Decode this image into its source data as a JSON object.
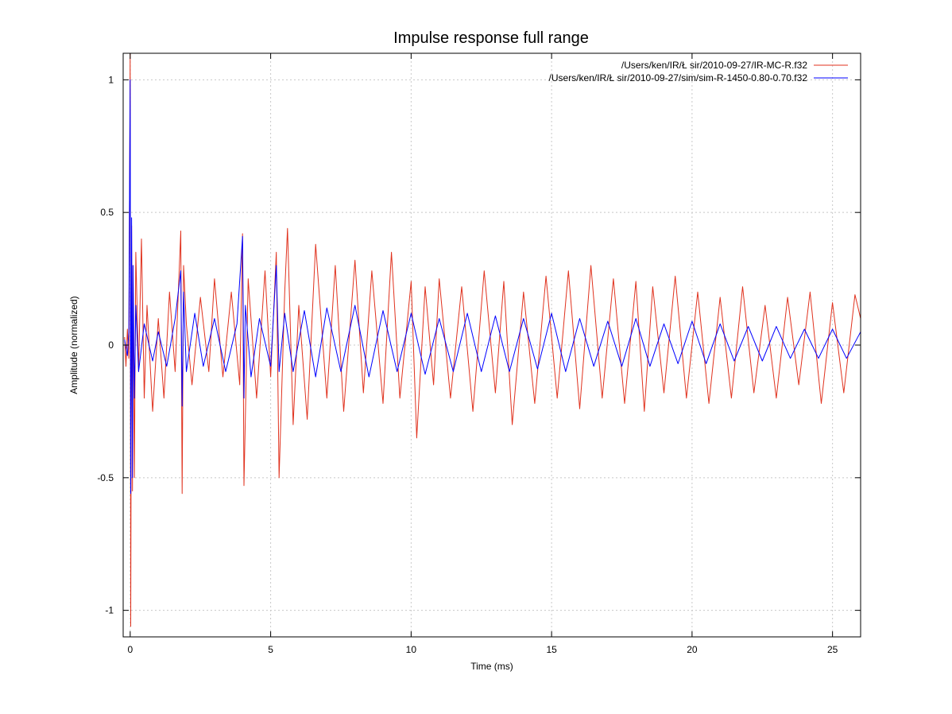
{
  "chart_data": {
    "type": "line",
    "title": "Impulse response full range",
    "xlabel": "Time (ms)",
    "ylabel": "Amplitude (normalized)",
    "xlim": [
      -0.25,
      26
    ],
    "ylim": [
      -1.1,
      1.1
    ],
    "xticks": [
      0,
      5,
      10,
      15,
      20,
      25
    ],
    "yticks": [
      1,
      0.5,
      0,
      -0.5,
      -1
    ],
    "xtick_labels": [
      "0",
      "5",
      "10",
      "15",
      "20",
      "25"
    ],
    "ytick_labels": [
      "1",
      "0.5",
      "0",
      "-0.5",
      "-1"
    ],
    "grid": true,
    "legend_position": "top-right",
    "series": [
      {
        "name": "/Users/ken/IR/Ł     sir/2010-09-27/IR-MC-R.f32",
        "color": "#e0321e",
        "x": [
          -0.2,
          -0.15,
          -0.1,
          -0.05,
          0.0,
          0.02,
          0.05,
          0.08,
          0.1,
          0.15,
          0.2,
          0.3,
          0.4,
          0.5,
          0.6,
          0.8,
          1.0,
          1.2,
          1.4,
          1.6,
          1.8,
          1.85,
          1.9,
          2.0,
          2.2,
          2.5,
          2.8,
          3.0,
          3.3,
          3.6,
          3.9,
          4.0,
          4.05,
          4.2,
          4.5,
          4.8,
          5.0,
          5.2,
          5.3,
          5.5,
          5.6,
          5.8,
          6.0,
          6.3,
          6.6,
          7.0,
          7.3,
          7.6,
          8.0,
          8.3,
          8.6,
          9.0,
          9.3,
          9.6,
          10.0,
          10.2,
          10.5,
          10.8,
          11.0,
          11.4,
          11.8,
          12.2,
          12.6,
          13.0,
          13.3,
          13.6,
          14.0,
          14.4,
          14.8,
          15.2,
          15.6,
          16.0,
          16.4,
          16.8,
          17.2,
          17.6,
          18.0,
          18.3,
          18.6,
          19.0,
          19.4,
          19.8,
          20.2,
          20.6,
          21.0,
          21.4,
          21.8,
          22.2,
          22.6,
          23.0,
          23.4,
          23.8,
          24.2,
          24.6,
          25.0,
          25.4,
          25.8,
          26.0
        ],
        "values": [
          0.03,
          -0.08,
          0.06,
          -0.05,
          1.1,
          -1.06,
          0.45,
          -0.55,
          0.3,
          -0.5,
          0.35,
          -0.1,
          0.4,
          -0.2,
          0.15,
          -0.25,
          0.1,
          -0.2,
          0.2,
          -0.1,
          0.43,
          -0.56,
          0.3,
          0.08,
          -0.15,
          0.18,
          -0.1,
          0.25,
          -0.12,
          0.2,
          -0.15,
          0.42,
          -0.53,
          0.25,
          -0.2,
          0.28,
          -0.12,
          0.35,
          -0.5,
          0.2,
          0.44,
          -0.3,
          0.15,
          -0.28,
          0.38,
          -0.2,
          0.3,
          -0.25,
          0.32,
          -0.18,
          0.28,
          -0.22,
          0.35,
          -0.2,
          0.24,
          -0.35,
          0.22,
          -0.15,
          0.25,
          -0.2,
          0.22,
          -0.25,
          0.28,
          -0.18,
          0.24,
          -0.3,
          0.2,
          -0.22,
          0.26,
          -0.2,
          0.28,
          -0.24,
          0.3,
          -0.2,
          0.25,
          -0.22,
          0.24,
          -0.25,
          0.22,
          -0.18,
          0.26,
          -0.2,
          0.2,
          -0.22,
          0.18,
          -0.2,
          0.22,
          -0.18,
          0.15,
          -0.2,
          0.18,
          -0.15,
          0.2,
          -0.22,
          0.16,
          -0.18,
          0.19,
          0.1
        ]
      },
      {
        "name": "/Users/ken/IR/Ł     sir/2010-09-27/sim/sim-R-1450-0.80-0.70.f32",
        "color": "#0000ff",
        "x": [
          -0.2,
          -0.1,
          -0.05,
          0.0,
          0.02,
          0.05,
          0.08,
          0.1,
          0.15,
          0.2,
          0.3,
          0.5,
          0.8,
          1.0,
          1.3,
          1.6,
          1.8,
          1.85,
          1.9,
          2.0,
          2.3,
          2.6,
          3.0,
          3.4,
          3.8,
          4.0,
          4.05,
          4.1,
          4.3,
          4.6,
          5.0,
          5.2,
          5.3,
          5.5,
          5.8,
          6.2,
          6.6,
          7.0,
          7.5,
          8.0,
          8.5,
          9.0,
          9.5,
          10.0,
          10.5,
          11.0,
          11.5,
          12.0,
          12.5,
          13.0,
          13.5,
          14.0,
          14.5,
          15.0,
          15.5,
          16.0,
          16.5,
          17.0,
          17.5,
          18.0,
          18.5,
          19.0,
          19.5,
          20.0,
          20.5,
          21.0,
          21.5,
          22.0,
          22.5,
          23.0,
          23.5,
          24.0,
          24.5,
          25.0,
          25.5,
          26.0
        ],
        "values": [
          0.02,
          -0.04,
          0.05,
          1.0,
          -0.56,
          0.48,
          -0.5,
          0.3,
          -0.2,
          0.15,
          -0.1,
          0.08,
          -0.06,
          0.05,
          -0.08,
          0.1,
          0.28,
          -0.23,
          0.2,
          -0.1,
          0.12,
          -0.08,
          0.1,
          -0.1,
          0.08,
          0.41,
          -0.2,
          0.15,
          -0.12,
          0.1,
          -0.08,
          0.3,
          -0.1,
          0.12,
          -0.1,
          0.13,
          -0.12,
          0.14,
          -0.1,
          0.15,
          -0.12,
          0.13,
          -0.1,
          0.12,
          -0.11,
          0.1,
          -0.1,
          0.12,
          -0.1,
          0.11,
          -0.1,
          0.1,
          -0.09,
          0.12,
          -0.1,
          0.1,
          -0.08,
          0.09,
          -0.08,
          0.1,
          -0.08,
          0.08,
          -0.07,
          0.09,
          -0.07,
          0.08,
          -0.06,
          0.07,
          -0.06,
          0.07,
          -0.05,
          0.06,
          -0.05,
          0.06,
          -0.05,
          0.05
        ]
      }
    ]
  }
}
